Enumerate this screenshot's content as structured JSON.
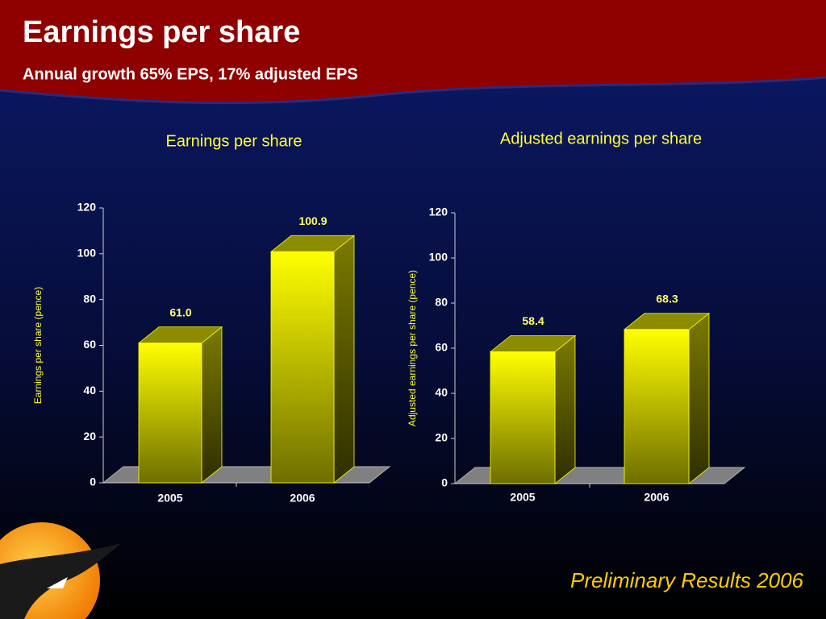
{
  "slide": {
    "title": "Earnings per share",
    "subtitle": "Annual growth 65% EPS, 17% adjusted EPS",
    "footer": "Preliminary Results 2006"
  },
  "chart_data": [
    {
      "type": "bar3d",
      "title": "Earnings per share",
      "y_label": "Earnings per share (pence)",
      "categories": [
        "2005",
        "2006"
      ],
      "values": [
        61.0,
        100.9
      ],
      "value_labels": [
        "61.0",
        "100.9"
      ],
      "color": "#ffff00",
      "ylim": [
        0,
        120
      ],
      "yticks": [
        0,
        20,
        40,
        60,
        80,
        100,
        120
      ],
      "grid": false
    },
    {
      "type": "bar3d",
      "title": "Adjusted earnings per share",
      "y_label": "Adjusted earnings per share (pence)",
      "categories": [
        "2005",
        "2006"
      ],
      "values": [
        58.4,
        68.3
      ],
      "value_labels": [
        "58.4",
        "68.3"
      ],
      "color": "#ffff00",
      "ylim": [
        0,
        120
      ],
      "yticks": [
        0,
        20,
        40,
        60,
        80,
        100,
        120
      ],
      "grid": false
    }
  ]
}
